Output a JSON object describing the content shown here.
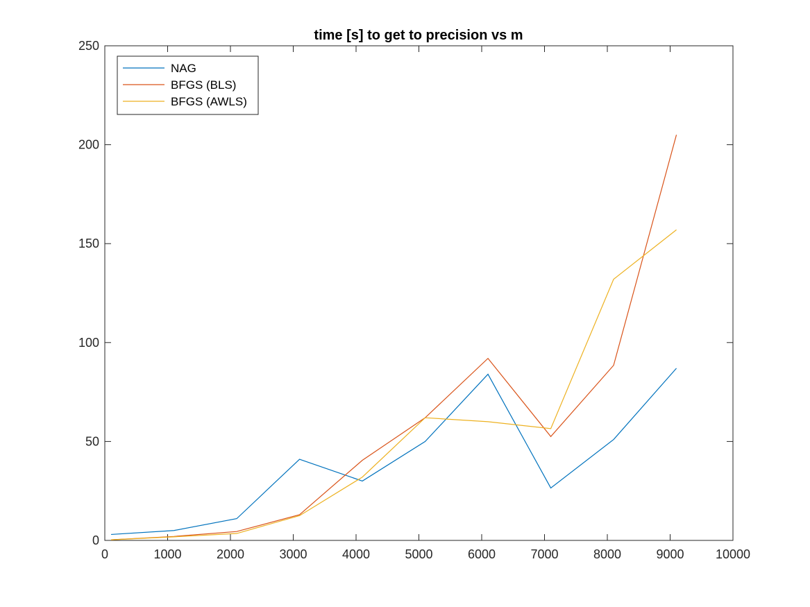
{
  "chart_data": {
    "type": "line",
    "title": "time [s] to get to precision vs m",
    "xlabel": "",
    "ylabel": "",
    "xlim": [
      0,
      10000
    ],
    "ylim": [
      0,
      250
    ],
    "xticks": [
      0,
      1000,
      2000,
      3000,
      4000,
      5000,
      6000,
      7000,
      8000,
      9000,
      10000
    ],
    "yticks": [
      0,
      50,
      100,
      150,
      200,
      250
    ],
    "grid": false,
    "legend_position": "top-left",
    "x": [
      100,
      1100,
      2100,
      3100,
      4100,
      5100,
      6100,
      7100,
      8100,
      9100
    ],
    "series": [
      {
        "name": "NAG",
        "color": "#0072BD",
        "values": [
          3,
          5,
          11,
          41,
          30,
          50,
          84,
          26.5,
          51,
          87
        ]
      },
      {
        "name": "BFGS (BLS)",
        "color": "#D95319",
        "values": [
          0.3,
          2,
          4.5,
          13,
          40.5,
          62,
          92,
          52.5,
          88.5,
          205
        ]
      },
      {
        "name": "BFGS (AWLS)",
        "color": "#EDB120",
        "values": [
          0.3,
          1.8,
          3.5,
          12.5,
          32,
          62,
          60,
          56.5,
          132,
          157
        ]
      }
    ]
  }
}
